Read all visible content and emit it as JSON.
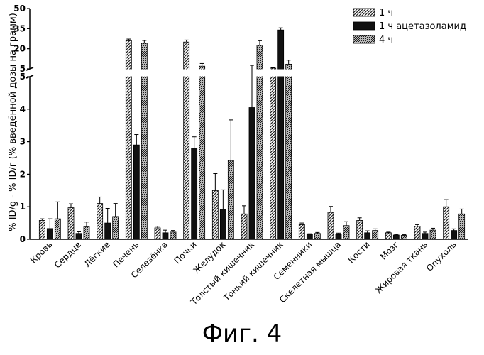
{
  "chart_data": {
    "type": "bar",
    "title": "",
    "ylabel": "% ID/g - % ID/г (% введённой дозы на грамм)",
    "xlabel": "",
    "broken_axis": {
      "lower": {
        "ylim": [
          0,
          5
        ],
        "ticks": [
          "0",
          "1",
          "2",
          "3",
          "4",
          "5"
        ]
      },
      "upper": {
        "ylim": [
          5,
          50
        ],
        "ticks": [
          "5",
          "20",
          "35",
          "50"
        ]
      }
    },
    "categories": [
      "Кровь",
      "Сердце",
      "Лёгкие",
      "Печень",
      "Селезёнка",
      "Почки",
      "Желудок",
      "Толстый кишечник",
      "Тонкий кишечник",
      "Семенники",
      "Скелетная мышца",
      "Кости",
      "Мозг",
      "Жировая ткань",
      "Опухоль"
    ],
    "series": [
      {
        "name": "1 ч",
        "pattern": "hatch",
        "values": [
          0.58,
          0.97,
          1.1,
          26,
          0.35,
          25,
          1.5,
          0.78,
          5.5,
          0.45,
          0.83,
          0.58,
          0.2,
          0.4,
          1.0
        ],
        "errors": [
          0.05,
          0.12,
          0.2,
          1.2,
          0.05,
          1.5,
          0.52,
          0.25,
          0.3,
          0.05,
          0.18,
          0.08,
          0.02,
          0.05,
          0.22
        ]
      },
      {
        "name": "1 ч ацетазоламид",
        "pattern": "solid",
        "values": [
          0.33,
          0.18,
          0.5,
          2.9,
          0.2,
          2.8,
          0.92,
          4.05,
          34,
          0.15,
          0.15,
          0.2,
          0.13,
          0.18,
          0.27
        ],
        "errors": [
          0.3,
          0.05,
          0.45,
          0.32,
          0.08,
          0.35,
          0.6,
          3.6,
          1.6,
          0.02,
          0.04,
          0.06,
          0.02,
          0.04,
          0.05
        ]
      },
      {
        "name": "4 ч",
        "pattern": "hatch-dense",
        "values": [
          0.63,
          0.38,
          0.7,
          24,
          0.22,
          7,
          2.42,
          22.5,
          8.5,
          0.18,
          0.42,
          0.27,
          0.12,
          0.28,
          0.78
        ],
        "errors": [
          0.52,
          0.15,
          0.4,
          2.2,
          0.05,
          2.0,
          1.25,
          3.5,
          3.0,
          0.03,
          0.12,
          0.05,
          0.02,
          0.06,
          0.15
        ]
      }
    ],
    "legend_position": "top-right"
  },
  "figure": {
    "caption": "Фиг. 4"
  }
}
